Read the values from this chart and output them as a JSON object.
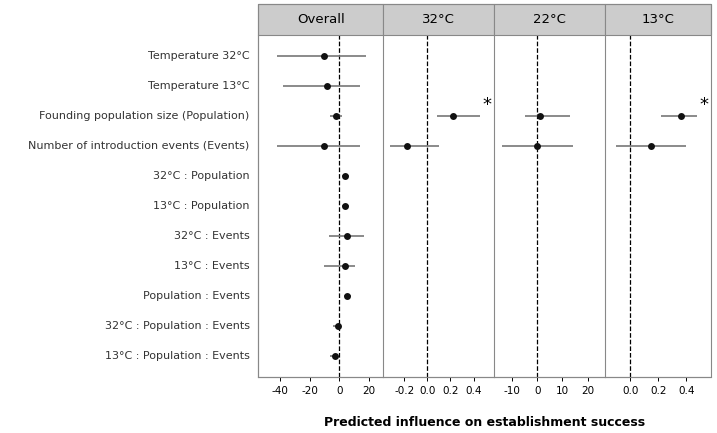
{
  "rows": [
    "Temperature 32°C",
    "Temperature 13°C",
    "Founding population size (Population)",
    "Number of introduction events (Events)",
    "32°C : Population",
    "13°C : Population",
    "32°C : Events",
    "13°C : Events",
    "Population : Events",
    "32°C : Population : Events",
    "13°C : Population : Events"
  ],
  "panels": [
    {
      "label": "Overall",
      "xlim": [
        -55,
        30
      ],
      "xticks": [
        -40,
        -20,
        0,
        20
      ],
      "xticklabels": [
        "-40",
        "-20",
        "0",
        "20"
      ],
      "zero": 0,
      "points": [
        -10,
        -8,
        -2,
        -10,
        4,
        4,
        5,
        4,
        5,
        -1,
        -3
      ],
      "ci_lo": [
        -42,
        -38,
        -6,
        -42,
        2,
        2,
        -7,
        -10,
        3,
        -4,
        -6
      ],
      "ci_hi": [
        18,
        14,
        2,
        14,
        7,
        7,
        17,
        11,
        8,
        1,
        -1
      ],
      "significant": [
        false,
        false,
        false,
        false,
        false,
        false,
        false,
        false,
        false,
        false,
        false
      ]
    },
    {
      "label": "32°C",
      "xlim": [
        -0.38,
        0.58
      ],
      "xticks": [
        -0.2,
        0.0,
        0.2,
        0.4
      ],
      "xticklabels": [
        "-0.2",
        "0.0",
        "0.2",
        "0.4"
      ],
      "zero": 0,
      "points": [
        null,
        null,
        0.22,
        -0.18,
        null,
        null,
        null,
        null,
        null,
        null,
        null
      ],
      "ci_lo": [
        null,
        null,
        0.08,
        -0.32,
        null,
        null,
        null,
        null,
        null,
        null,
        null
      ],
      "ci_hi": [
        null,
        null,
        0.46,
        0.1,
        null,
        null,
        null,
        null,
        null,
        null,
        null
      ],
      "significant": [
        false,
        false,
        true,
        false,
        false,
        false,
        false,
        false,
        false,
        false,
        false
      ]
    },
    {
      "label": "22°C",
      "xlim": [
        -17,
        27
      ],
      "xticks": [
        -10,
        0,
        10,
        20
      ],
      "xticklabels": [
        "-10",
        "0",
        "10",
        "20"
      ],
      "zero": 0,
      "points": [
        null,
        null,
        1,
        0,
        null,
        null,
        null,
        null,
        null,
        null,
        null
      ],
      "ci_lo": [
        null,
        null,
        -5,
        -14,
        null,
        null,
        null,
        null,
        null,
        null,
        null
      ],
      "ci_hi": [
        null,
        null,
        13,
        14,
        null,
        null,
        null,
        null,
        null,
        null,
        null
      ],
      "significant": [
        false,
        false,
        false,
        false,
        false,
        false,
        false,
        false,
        false,
        false,
        false
      ]
    },
    {
      "label": "13°C",
      "xlim": [
        -0.18,
        0.58
      ],
      "xticks": [
        0.0,
        0.2,
        0.4
      ],
      "xticklabels": [
        "0.0",
        "0.2",
        "0.4"
      ],
      "zero": 0,
      "points": [
        null,
        null,
        0.36,
        0.15,
        null,
        null,
        null,
        null,
        null,
        null,
        null
      ],
      "ci_lo": [
        null,
        null,
        0.22,
        -0.1,
        null,
        null,
        null,
        null,
        null,
        null,
        null
      ],
      "ci_hi": [
        null,
        null,
        0.48,
        0.4,
        null,
        null,
        null,
        null,
        null,
        null,
        null
      ],
      "significant": [
        false,
        false,
        true,
        false,
        false,
        false,
        false,
        false,
        false,
        false,
        false
      ]
    }
  ],
  "xlabel": "Predicted influence on establishment success",
  "dot_color": "#111111",
  "line_color": "#777777",
  "header_bg": "#cccccc",
  "panel_bg": "#ffffff",
  "border_color": "#888888",
  "fontsize_row_labels": 8.0,
  "fontsize_ticks": 7.5,
  "fontsize_header": 9.5,
  "fontsize_xlabel": 9.0,
  "star_fontsize": 13
}
